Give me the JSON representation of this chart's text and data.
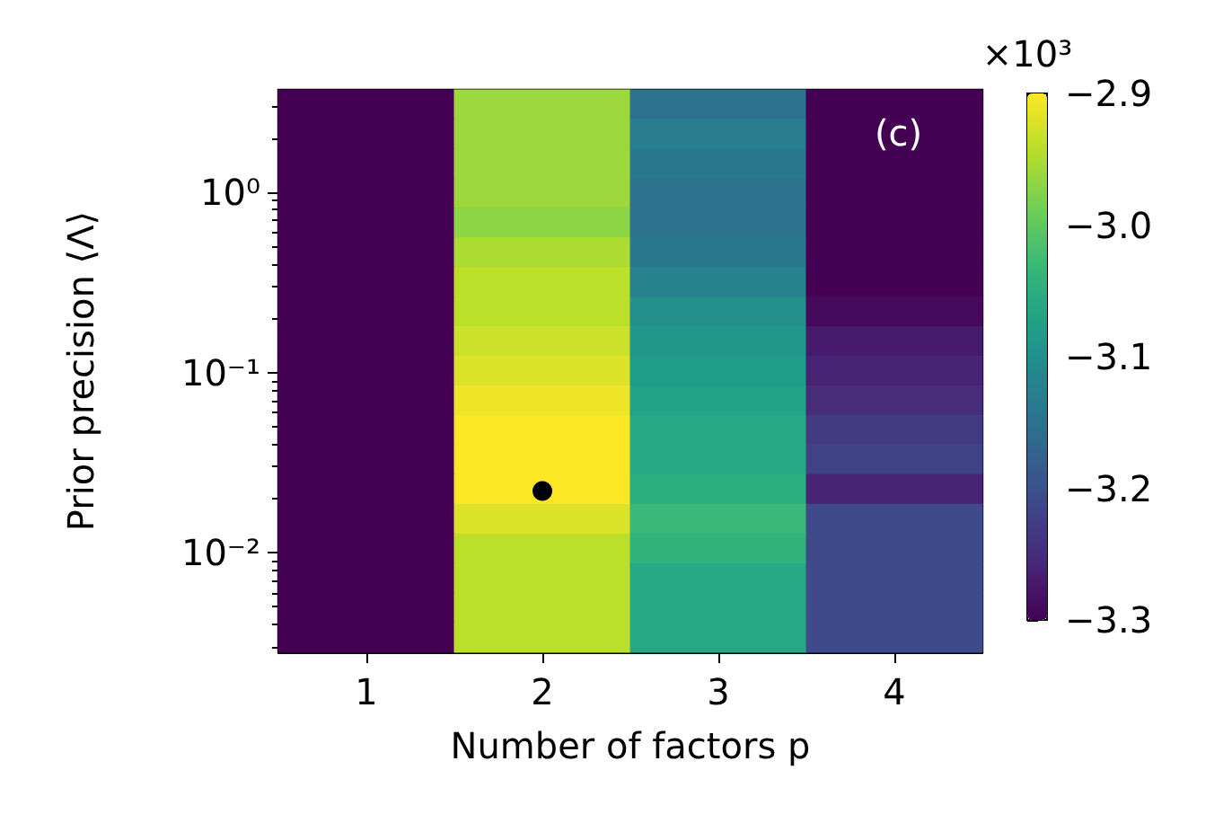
{
  "chart_data": {
    "type": "heatmap",
    "xlabel": "Number of factors p",
    "ylabel": "Prior precision ⟨Λ⟩",
    "clabel": "×10³",
    "categories": [
      "1",
      "2",
      "3",
      "4"
    ],
    "cells": [
      [
        -3.3,
        -2.96,
        -3.15,
        -3.3
      ],
      [
        -3.3,
        -2.96,
        -3.13,
        -3.3
      ],
      [
        -3.3,
        -2.96,
        -3.14,
        -3.3
      ],
      [
        -3.3,
        -2.96,
        -3.15,
        -3.3
      ],
      [
        -3.3,
        -2.97,
        -3.15,
        -3.3
      ],
      [
        -3.3,
        -2.95,
        -3.14,
        -3.3
      ],
      [
        -3.3,
        -2.94,
        -3.12,
        -3.3
      ],
      [
        -3.3,
        -2.94,
        -3.1,
        -3.29
      ],
      [
        -3.3,
        -2.93,
        -3.09,
        -3.27
      ],
      [
        -3.3,
        -2.92,
        -3.08,
        -3.26
      ],
      [
        -3.3,
        -2.91,
        -3.07,
        -3.25
      ],
      [
        -3.3,
        -2.9,
        -3.06,
        -3.23
      ],
      [
        -3.3,
        -2.9,
        -3.06,
        -3.22
      ],
      [
        -3.3,
        -2.9,
        -3.05,
        -3.26
      ],
      [
        -3.3,
        -2.92,
        -3.03,
        -3.21
      ],
      [
        -3.3,
        -2.94,
        -3.04,
        -3.21
      ],
      [
        -3.3,
        -2.94,
        -3.06,
        -3.21
      ],
      [
        -3.3,
        -2.94,
        -3.06,
        -3.21
      ],
      [
        -3.3,
        -2.94,
        -3.06,
        -3.21
      ]
    ],
    "clim": [
      -3.3,
      -2.9
    ],
    "cticks": [
      {
        "value": -3.3,
        "label": "−3.3"
      },
      {
        "value": -3.2,
        "label": "−3.2"
      },
      {
        "value": -3.1,
        "label": "−3.1"
      },
      {
        "value": -3,
        "label": "−3.0"
      },
      {
        "value": -2.9,
        "label": "−2.9"
      }
    ],
    "log": "y",
    "ylim": [
      0.0028,
      3.7
    ],
    "yticks": [
      {
        "value": 0.003,
        "label": null
      },
      {
        "value": 0.004,
        "label": null
      },
      {
        "value": 0.005,
        "label": null
      },
      {
        "value": 0.006,
        "label": null
      },
      {
        "value": 0.007,
        "label": null
      },
      {
        "value": 0.008,
        "label": null
      },
      {
        "value": 0.009,
        "label": null
      },
      {
        "value": 0.01,
        "label": "10⁻²"
      },
      {
        "value": 0.02,
        "label": null
      },
      {
        "value": 0.03,
        "label": null
      },
      {
        "value": 0.04,
        "label": null
      },
      {
        "value": 0.05,
        "label": null
      },
      {
        "value": 0.06,
        "label": null
      },
      {
        "value": 0.07,
        "label": null
      },
      {
        "value": 0.08,
        "label": null
      },
      {
        "value": 0.09,
        "label": null
      },
      {
        "value": 0.1,
        "label": "10⁻¹"
      },
      {
        "value": 0.2,
        "label": null
      },
      {
        "value": 0.3,
        "label": null
      },
      {
        "value": 0.4,
        "label": null
      },
      {
        "value": 0.5,
        "label": null
      },
      {
        "value": 0.6,
        "label": null
      },
      {
        "value": 0.7,
        "label": null
      },
      {
        "value": 0.8,
        "label": null
      },
      {
        "value": 0.9,
        "label": null
      },
      {
        "value": 1,
        "label": "10⁰"
      },
      {
        "value": 2,
        "label": null
      },
      {
        "value": 3,
        "label": null
      }
    ],
    "series": [
      {
        "type": "scatter",
        "x": [
          "2"
        ],
        "values": [
          0.022
        ],
        "color": "#000000",
        "marker": "circle"
      }
    ],
    "annotations": [
      "(c)"
    ]
  }
}
